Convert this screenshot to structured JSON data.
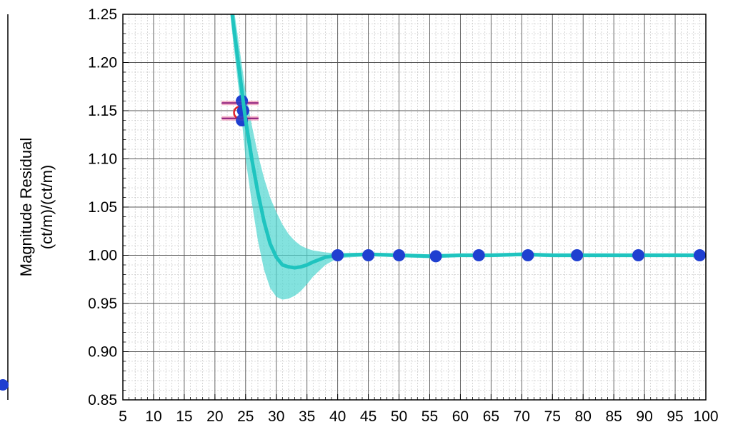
{
  "chart_data": {
    "type": "line",
    "title": "",
    "xlabel": "",
    "ylabel": "Magnitude Residual",
    "ylabel_units": "(ct/m)/(ct/m)",
    "xlim": [
      5,
      100
    ],
    "ylim": [
      0.85,
      1.25
    ],
    "x_ticks": [
      5,
      10,
      15,
      20,
      25,
      30,
      35,
      40,
      45,
      50,
      55,
      60,
      65,
      70,
      75,
      80,
      85,
      90,
      95,
      100
    ],
    "x_tick_labels": [
      "5",
      "10",
      "15",
      "20",
      "25",
      "30",
      "35",
      "40",
      "45",
      "50",
      "55",
      "60",
      "65",
      "70",
      "75",
      "80",
      "85",
      "90",
      "95",
      "100"
    ],
    "y_ticks": [
      0.85,
      0.9,
      0.95,
      1.0,
      1.05,
      1.1,
      1.15,
      1.2,
      1.25
    ],
    "y_tick_labels": [
      "0.85",
      "0.90",
      "0.95",
      "1.00",
      "1.05",
      "1.10",
      "1.15",
      "1.20",
      "1.25"
    ],
    "grid": true,
    "minor_grid": true,
    "colors": {
      "fit": "#1fc4bf",
      "band": "#4fd6d0",
      "points": "#1f3fd0",
      "outlier": "#e0202a",
      "errorbar": "#8a1a7a",
      "errorbar_glow": "#f090b0",
      "grid": "#555555",
      "minor_grid": "#bbbbbb"
    },
    "series": [
      {
        "name": "",
        "kind": "fit",
        "x": [
          22.5,
          23,
          24,
          25,
          26,
          27,
          28,
          29,
          30,
          31,
          32,
          33,
          34,
          35,
          36,
          38,
          40,
          45,
          50,
          55,
          60,
          65,
          70,
          75,
          80,
          85,
          90,
          95,
          100
        ],
        "y": [
          1.27,
          1.24,
          1.19,
          1.14,
          1.1,
          1.065,
          1.035,
          1.012,
          0.998,
          0.99,
          0.988,
          0.987,
          0.988,
          0.99,
          0.993,
          0.998,
          1.0,
          1.001,
          1.0,
          0.999,
          1.0,
          1.0,
          1.001,
          1.0,
          1.0,
          1.0,
          1.0,
          1.0,
          1.0
        ]
      },
      {
        "name": "",
        "kind": "band",
        "x": [
          22.5,
          23,
          24,
          25,
          26,
          27,
          28,
          29,
          30,
          31,
          32,
          33,
          34,
          35,
          36,
          38,
          40,
          45,
          50,
          55,
          60,
          65,
          70,
          75,
          80,
          85,
          90,
          95,
          100
        ],
        "lower": [
          1.25,
          1.22,
          1.165,
          1.1,
          1.055,
          1.015,
          0.985,
          0.966,
          0.957,
          0.954,
          0.955,
          0.958,
          0.963,
          0.97,
          0.978,
          0.99,
          0.997,
          0.999,
          0.998,
          0.997,
          0.998,
          0.998,
          0.999,
          0.998,
          0.998,
          0.998,
          0.998,
          0.998,
          0.998
        ],
        "upper": [
          1.29,
          1.26,
          1.215,
          1.17,
          1.135,
          1.105,
          1.08,
          1.06,
          1.045,
          1.032,
          1.022,
          1.015,
          1.01,
          1.007,
          1.005,
          1.003,
          1.002,
          1.003,
          1.002,
          1.001,
          1.002,
          1.002,
          1.003,
          1.002,
          1.002,
          1.002,
          1.002,
          1.002,
          1.002
        ]
      },
      {
        "name": "",
        "kind": "points",
        "x": [
          24.4,
          24.4,
          24.6,
          40,
          45,
          50,
          56,
          63,
          71,
          79,
          89,
          99
        ],
        "y": [
          1.16,
          1.14,
          1.15,
          1.0,
          1.0,
          1.0,
          0.999,
          1.0,
          1.0,
          1.0,
          1.0,
          1.0
        ]
      },
      {
        "name": "",
        "kind": "outlier",
        "x": [
          24.1
        ],
        "y": [
          1.148
        ],
        "error_x": 3.0,
        "error_y_levels": [
          1.158,
          1.142
        ]
      }
    ]
  }
}
